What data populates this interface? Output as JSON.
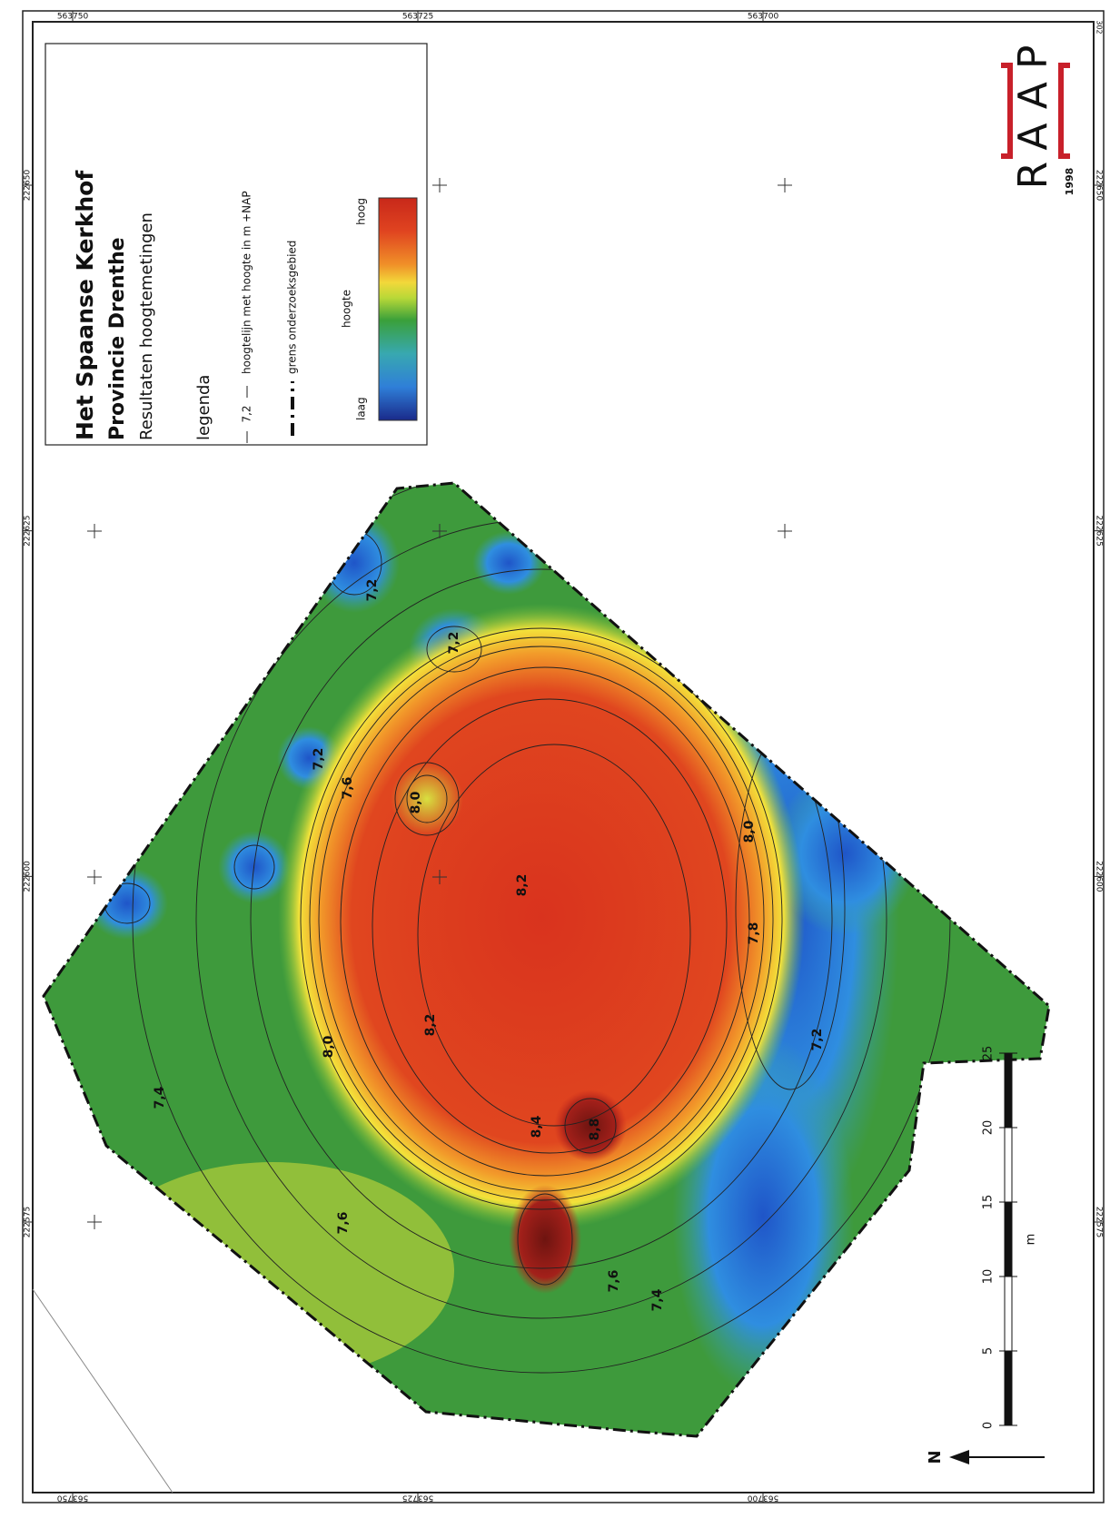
{
  "frame": {
    "corner": "302",
    "top": [
      563750,
      563725,
      563700
    ],
    "bottom": [
      563750,
      563725,
      563700
    ],
    "left": [
      222650,
      222625,
      222600,
      222575
    ],
    "right": [
      222650,
      222625,
      222600,
      222575
    ]
  },
  "legend": {
    "title": "Het Spaanse Kerkhof",
    "subtitle": "Provincie Drenthe",
    "caption": "Resultaten hoogtemetingen",
    "heading": "legenda",
    "contour_sample": "7,2",
    "contour_text": "hoogtelijn met hoogte in m +NAP",
    "boundary_text": "grens onderzoeksgebied",
    "low": "laag",
    "axis": "hoogte",
    "high": "hoog"
  },
  "logo": {
    "name": "RAAP",
    "year": "1998"
  },
  "scale": {
    "ticks": [
      0,
      5,
      10,
      15,
      20,
      25
    ],
    "unit": "m"
  },
  "north": "N",
  "contour_labels": [
    "7,2",
    "7,2",
    "7,2",
    "7,6",
    "8,0",
    "8,2",
    "7,8",
    "8,0",
    "8,0",
    "8,2",
    "8,4",
    "8,8",
    "7,2",
    "7,4",
    "7,6",
    "7,6",
    "7,4"
  ]
}
